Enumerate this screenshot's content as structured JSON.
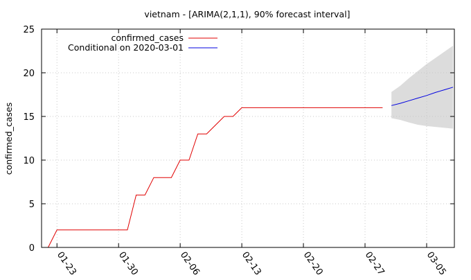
{
  "chart_data": {
    "type": "line",
    "title": "vietnam -  [ARIMA(2,1,1), 90% forecast interval]",
    "xlabel": "",
    "ylabel": "confirmed_cases",
    "ylim": [
      0,
      25
    ],
    "yticks": [
      0,
      5,
      10,
      15,
      20,
      25
    ],
    "xlim": [
      "2020-01-22",
      "2020-03-08"
    ],
    "xticks": [
      {
        "date": "2020-01-23",
        "label": "01-23"
      },
      {
        "date": "2020-01-30",
        "label": "01-30"
      },
      {
        "date": "2020-02-06",
        "label": "02-06"
      },
      {
        "date": "2020-02-13",
        "label": "02-13"
      },
      {
        "date": "2020-02-20",
        "label": "02-20"
      },
      {
        "date": "2020-02-27",
        "label": "02-27"
      },
      {
        "date": "2020-03-05",
        "label": "03-05"
      }
    ],
    "grid": true,
    "legend_position": "top-left",
    "series": [
      {
        "name": "confirmed_cases",
        "color": "#e00000",
        "points": [
          [
            "2020-01-22",
            0
          ],
          [
            "2020-01-23",
            2
          ],
          [
            "2020-01-24",
            2
          ],
          [
            "2020-01-25",
            2
          ],
          [
            "2020-01-26",
            2
          ],
          [
            "2020-01-27",
            2
          ],
          [
            "2020-01-28",
            2
          ],
          [
            "2020-01-29",
            2
          ],
          [
            "2020-01-30",
            2
          ],
          [
            "2020-01-31",
            2
          ],
          [
            "2020-02-01",
            6
          ],
          [
            "2020-02-02",
            6
          ],
          [
            "2020-02-03",
            8
          ],
          [
            "2020-02-04",
            8
          ],
          [
            "2020-02-05",
            8
          ],
          [
            "2020-02-06",
            10
          ],
          [
            "2020-02-07",
            10
          ],
          [
            "2020-02-08",
            13
          ],
          [
            "2020-02-09",
            13
          ],
          [
            "2020-02-10",
            14
          ],
          [
            "2020-02-11",
            15
          ],
          [
            "2020-02-12",
            15
          ],
          [
            "2020-02-13",
            16
          ],
          [
            "2020-02-14",
            16
          ],
          [
            "2020-02-15",
            16
          ],
          [
            "2020-02-16",
            16
          ],
          [
            "2020-02-17",
            16
          ],
          [
            "2020-02-18",
            16
          ],
          [
            "2020-02-19",
            16
          ],
          [
            "2020-02-20",
            16
          ],
          [
            "2020-02-21",
            16
          ],
          [
            "2020-02-22",
            16
          ],
          [
            "2020-02-23",
            16
          ],
          [
            "2020-02-24",
            16
          ],
          [
            "2020-02-25",
            16
          ],
          [
            "2020-02-26",
            16
          ],
          [
            "2020-02-27",
            16
          ],
          [
            "2020-02-28",
            16
          ],
          [
            "2020-02-29",
            16
          ]
        ]
      },
      {
        "name": "Conditional on 2020-03-01",
        "color": "#0000e0",
        "points": [
          [
            "2020-03-01",
            16.25
          ],
          [
            "2020-03-02",
            16.5
          ],
          [
            "2020-03-03",
            16.8
          ],
          [
            "2020-03-04",
            17.1
          ],
          [
            "2020-03-05",
            17.4
          ],
          [
            "2020-03-06",
            17.75
          ],
          [
            "2020-03-07",
            18.05
          ],
          [
            "2020-03-08",
            18.35
          ]
        ]
      }
    ],
    "forecast_interval": {
      "color": "#dcdcdc",
      "upper": [
        [
          "2020-03-01",
          17.8
        ],
        [
          "2020-03-02",
          18.5
        ],
        [
          "2020-03-03",
          19.4
        ],
        [
          "2020-03-04",
          20.2
        ],
        [
          "2020-03-05",
          21.0
        ],
        [
          "2020-03-06",
          21.7
        ],
        [
          "2020-03-07",
          22.4
        ],
        [
          "2020-03-08",
          23.1
        ]
      ],
      "lower": [
        [
          "2020-03-01",
          14.8
        ],
        [
          "2020-03-02",
          14.6
        ],
        [
          "2020-03-03",
          14.3
        ],
        [
          "2020-03-04",
          14.05
        ],
        [
          "2020-03-05",
          13.9
        ],
        [
          "2020-03-06",
          13.8
        ],
        [
          "2020-03-07",
          13.7
        ],
        [
          "2020-03-08",
          13.6
        ]
      ]
    }
  }
}
